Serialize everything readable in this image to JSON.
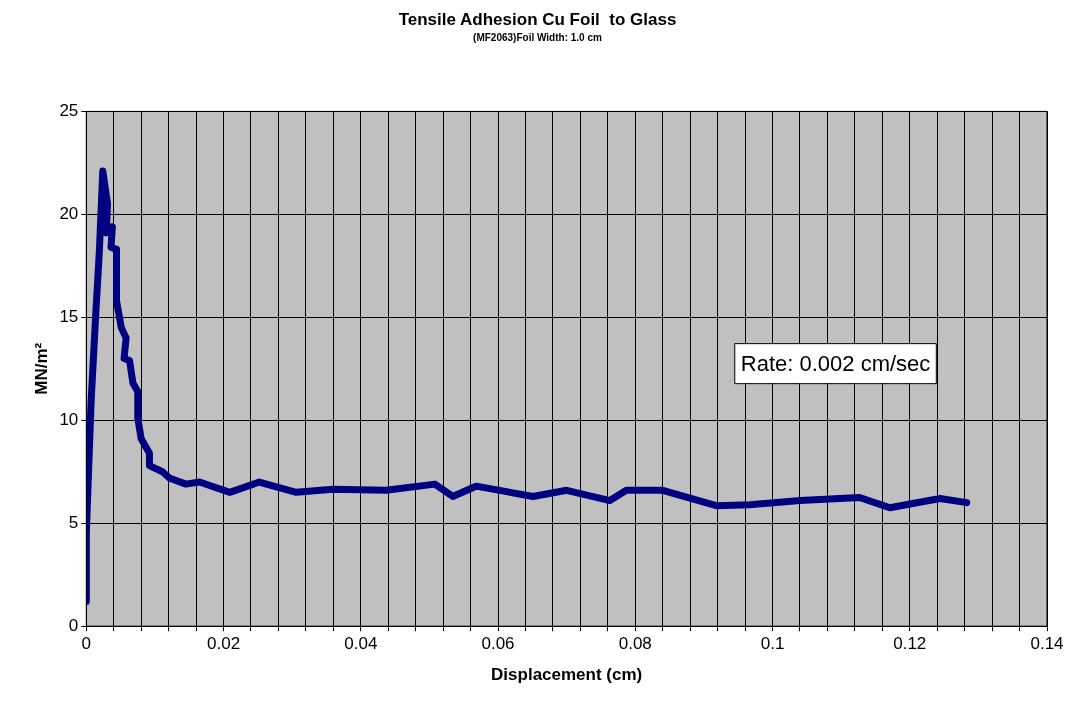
{
  "chart_data": {
    "type": "line",
    "title": "Tensile Adhesion Cu Foil  to Glass",
    "subtitle": "(MF2063)Foil Width: 1.0 cm",
    "xlabel": "Displacement (cm)",
    "ylabel": "MN/m²",
    "annotations": [
      "Rate: 0.002 cm/sec"
    ],
    "xlim": [
      0,
      0.14
    ],
    "ylim": [
      0,
      25
    ],
    "xticks": [
      0,
      {
        "value": 0.004,
        "label": null
      },
      {
        "value": 0.008,
        "label": null
      },
      {
        "value": 0.012,
        "label": null
      },
      {
        "value": 0.016,
        "label": null
      },
      0.02,
      {
        "value": 0.024,
        "label": null
      },
      {
        "value": 0.028,
        "label": null
      },
      {
        "value": 0.032,
        "label": null
      },
      {
        "value": 0.036,
        "label": null
      },
      0.04,
      {
        "value": 0.044,
        "label": null
      },
      {
        "value": 0.048,
        "label": null
      },
      {
        "value": 0.052,
        "label": null
      },
      {
        "value": 0.056,
        "label": null
      },
      0.06,
      {
        "value": 0.064,
        "label": null
      },
      {
        "value": 0.068,
        "label": null
      },
      {
        "value": 0.072,
        "label": null
      },
      {
        "value": 0.076,
        "label": null
      },
      0.08,
      {
        "value": 0.084,
        "label": null
      },
      {
        "value": 0.088,
        "label": null
      },
      {
        "value": 0.092,
        "label": null
      },
      {
        "value": 0.096,
        "label": null
      },
      0.1,
      {
        "value": 0.104,
        "label": null
      },
      {
        "value": 0.108,
        "label": null
      },
      {
        "value": 0.112,
        "label": null
      },
      {
        "value": 0.116,
        "label": null
      },
      0.12,
      {
        "value": 0.124,
        "label": null
      },
      {
        "value": 0.128,
        "label": null
      },
      {
        "value": 0.132,
        "label": null
      },
      {
        "value": 0.136,
        "label": null
      },
      0.14
    ],
    "yticks": [
      0,
      5,
      10,
      15,
      20,
      25
    ],
    "grid": true,
    "marker": "none",
    "line_style": "solid",
    "series": [
      {
        "color": "#000080",
        "x": [
          0,
          0,
          0.0007,
          0.0014,
          0.0019,
          0.0024,
          0.0031,
          0.0029,
          0.0038,
          0.0036,
          0.0044,
          0.0044,
          0.0051,
          0.0058,
          0.0055,
          0.0063,
          0.0068,
          0.0075,
          0.0075,
          0.008,
          0.0092,
          0.0092,
          0.0111,
          0.0121,
          0.0145,
          0.0165,
          0.0209,
          0.0252,
          0.0306,
          0.0359,
          0.0437,
          0.0508,
          0.0534,
          0.0568,
          0.0651,
          0.07,
          0.0763,
          0.0787,
          0.084,
          0.0918,
          0.0967,
          0.104,
          0.1127,
          0.1171,
          0.1244,
          0.1283
        ],
        "values": [
          1.2,
          4.5,
          10.9,
          15.3,
          18.2,
          22.1,
          20.5,
          19.1,
          19.4,
          18.4,
          18.3,
          15.8,
          14.5,
          14,
          13,
          12.9,
          11.8,
          11.4,
          10.1,
          9.1,
          8.4,
          7.8,
          7.5,
          7.2,
          6.9,
          7,
          6.5,
          7,
          6.5,
          6.65,
          6.6,
          6.9,
          6.3,
          6.8,
          6.3,
          6.6,
          6.1,
          6.6,
          6.6,
          5.85,
          5.9,
          6.1,
          6.25,
          5.75,
          6.2,
          6
        ]
      }
    ]
  }
}
